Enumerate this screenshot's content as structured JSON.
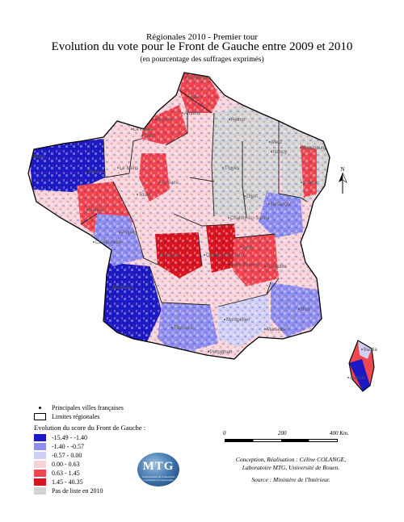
{
  "header": {
    "supertitle": "Régionales 2010 - Premier tour",
    "title": "Evolution du vote pour le Front de Gauche entre 2009 et 2010",
    "subtitle": "(en pourcentage des suffrages exprimés)"
  },
  "north_label": "N",
  "cities": [
    "Dunkerque",
    "Lille",
    "Rouen",
    "Le Havre",
    "Caen",
    "Amiens",
    "Reims",
    "Metz",
    "Nancy",
    "Strasbourg",
    "Colmar",
    "Troyes",
    "Dijon",
    "Chalon-sur-Saône",
    "Besançon",
    "Rennes",
    "Le Mans",
    "Orléans",
    "Tours",
    "Nantes",
    "Poitiers",
    "La Rochelle",
    "Limoges",
    "Clermont-Ferrand",
    "Lyon",
    "Saint-Étienne",
    "Grenoble",
    "Bordeaux",
    "Toulouse",
    "Montpellier",
    "Marseille",
    "Nice",
    "Perpignan",
    "Ajaccio",
    "Bastia",
    "Brest",
    "Caen",
    "Tours"
  ],
  "legend": {
    "cities": "Principales villes françaises",
    "regions": "Limites régionales",
    "title": "Evolution du score du Front de Gauche :",
    "classes": [
      {
        "label": "-15.49 - -1.40",
        "color": "#1a19c4"
      },
      {
        "label": "-1.40 - -0.57",
        "color": "#8f8ff0"
      },
      {
        "label": "-0.57 - 0.00",
        "color": "#d0d0f7"
      },
      {
        "label": "0.00 - 0.63",
        "color": "#f6d3d8"
      },
      {
        "label": "0.63 - 1.45",
        "color": "#ef4650"
      },
      {
        "label": "1.45 - 40.35",
        "color": "#d9141e"
      },
      {
        "label": "Pas de liste en 2010",
        "color": "#d3d3d3"
      }
    ]
  },
  "scalebar": {
    "ticks": [
      "0",
      "200",
      "400 Km."
    ]
  },
  "credit": {
    "line1": "Conception, Réalisation : Céline COLANGE,",
    "line2": "Laboratoire MTG, Université de Rouen.",
    "line3": "Source : Ministère de l'Intérieur."
  },
  "logo": {
    "text": "MTG",
    "caption": "Modélisations & Traitements Graphiques en Géographie"
  },
  "colors": {
    "background": "#ffffff",
    "outline": "#000000",
    "region_border": "#1a1a1a"
  }
}
